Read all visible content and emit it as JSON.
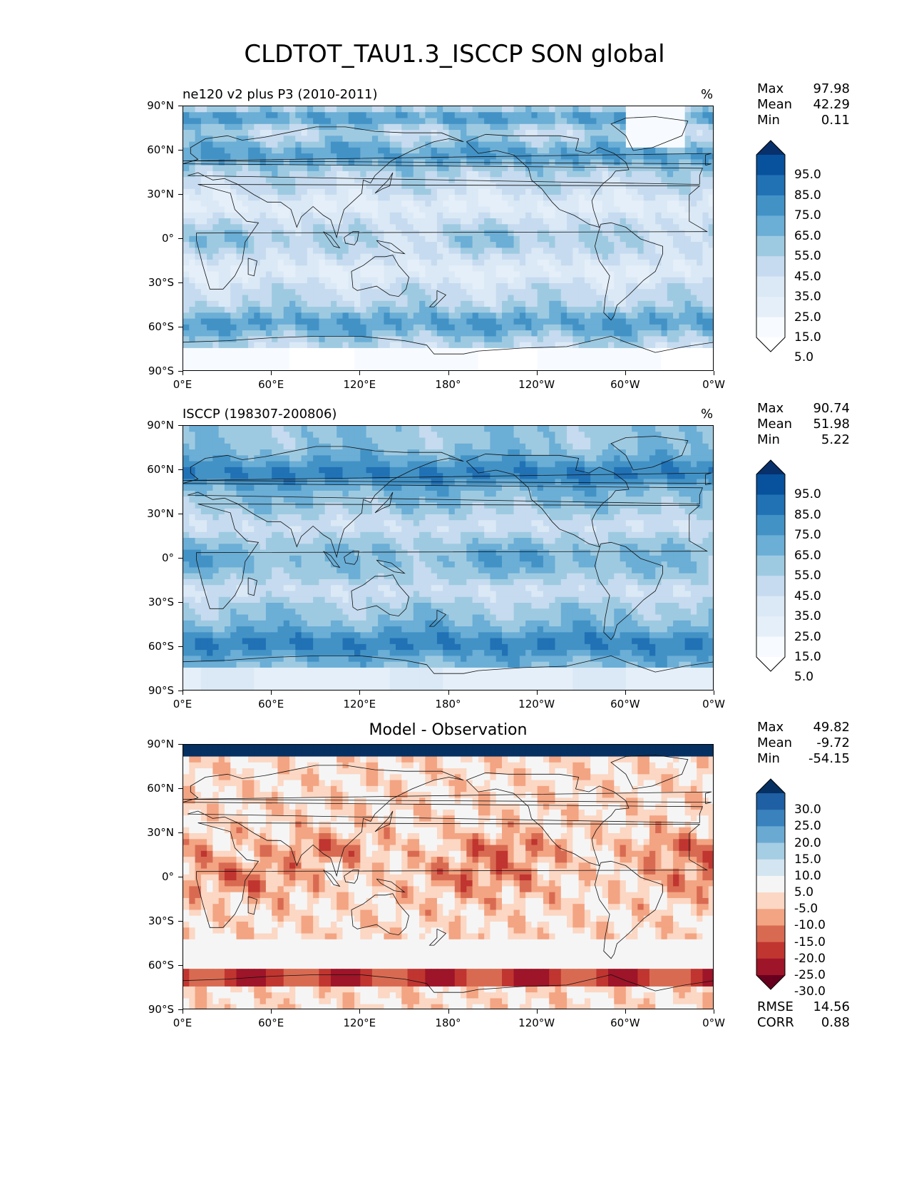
{
  "title": "CLDTOT_TAU1.3_ISCCP SON global",
  "chart_data": [
    {
      "type": "heatmap",
      "id": "model",
      "title": "ne120 v2 plus P3 (2010-2011)",
      "units": "%",
      "yticks": [
        "90°N",
        "60°N",
        "30°N",
        "0°",
        "30°S",
        "60°S",
        "90°S"
      ],
      "xticks": [
        "0°E",
        "60°E",
        "120°E",
        "180°",
        "120°W",
        "60°W",
        "0°W"
      ],
      "stats": [
        {
          "label": "Max",
          "value": "97.98"
        },
        {
          "label": "Mean",
          "value": "42.29"
        },
        {
          "label": "Min",
          "value": "0.11"
        }
      ],
      "colorbar": {
        "labels": [
          "95.0",
          "85.0",
          "75.0",
          "65.0",
          "55.0",
          "45.0",
          "35.0",
          "25.0",
          "15.0",
          "5.0"
        ],
        "colors": [
          "#08306b",
          "#08519c",
          "#2171b5",
          "#4292c6",
          "#6baed6",
          "#9ecae1",
          "#c6dbef",
          "#dbe9f6",
          "#e5eff9",
          "#f7fbff",
          "#ffffff"
        ]
      }
    },
    {
      "type": "heatmap",
      "id": "obs",
      "title": "ISCCP (198307-200806)",
      "units": "%",
      "yticks": [
        "90°N",
        "60°N",
        "30°N",
        "0°",
        "30°S",
        "60°S",
        "90°S"
      ],
      "xticks": [
        "0°E",
        "60°E",
        "120°E",
        "180°",
        "120°W",
        "60°W",
        "0°W"
      ],
      "stats": [
        {
          "label": "Max",
          "value": "90.74"
        },
        {
          "label": "Mean",
          "value": "51.98"
        },
        {
          "label": "Min",
          "value": "5.22"
        }
      ],
      "colorbar": {
        "labels": [
          "95.0",
          "85.0",
          "75.0",
          "65.0",
          "55.0",
          "45.0",
          "35.0",
          "25.0",
          "15.0",
          "5.0"
        ],
        "colors": [
          "#08306b",
          "#08519c",
          "#2171b5",
          "#4292c6",
          "#6baed6",
          "#9ecae1",
          "#c6dbef",
          "#dbe9f6",
          "#e5eff9",
          "#f7fbff",
          "#ffffff"
        ]
      }
    },
    {
      "type": "heatmap",
      "id": "diff",
      "title": "Model - Observation",
      "units": "",
      "yticks": [
        "90°N",
        "60°N",
        "30°N",
        "0°",
        "30°S",
        "60°S",
        "90°S"
      ],
      "xticks": [
        "0°E",
        "60°E",
        "120°E",
        "180°",
        "120°W",
        "60°W",
        "0°W"
      ],
      "stats": [
        {
          "label": "Max",
          "value": "49.82"
        },
        {
          "label": "Mean",
          "value": "-9.72"
        },
        {
          "label": "Min",
          "value": "-54.15"
        }
      ],
      "extra_stats": [
        {
          "label": "RMSE",
          "value": "14.56"
        },
        {
          "label": "CORR",
          "value": "0.88"
        }
      ],
      "colorbar": {
        "labels": [
          "30.0",
          "25.0",
          "20.0",
          "15.0",
          "10.0",
          "5.0",
          "-5.0",
          "-10.0",
          "-15.0",
          "-20.0",
          "-25.0",
          "-30.0"
        ],
        "colors": [
          "#053061",
          "#1f5fa3",
          "#3a82bd",
          "#6aaad2",
          "#a5cde3",
          "#d3e5f0",
          "#f5f5f5",
          "#fbd7c4",
          "#f3a482",
          "#d96a52",
          "#c03530",
          "#9e1428",
          "#67001f"
        ]
      }
    }
  ]
}
